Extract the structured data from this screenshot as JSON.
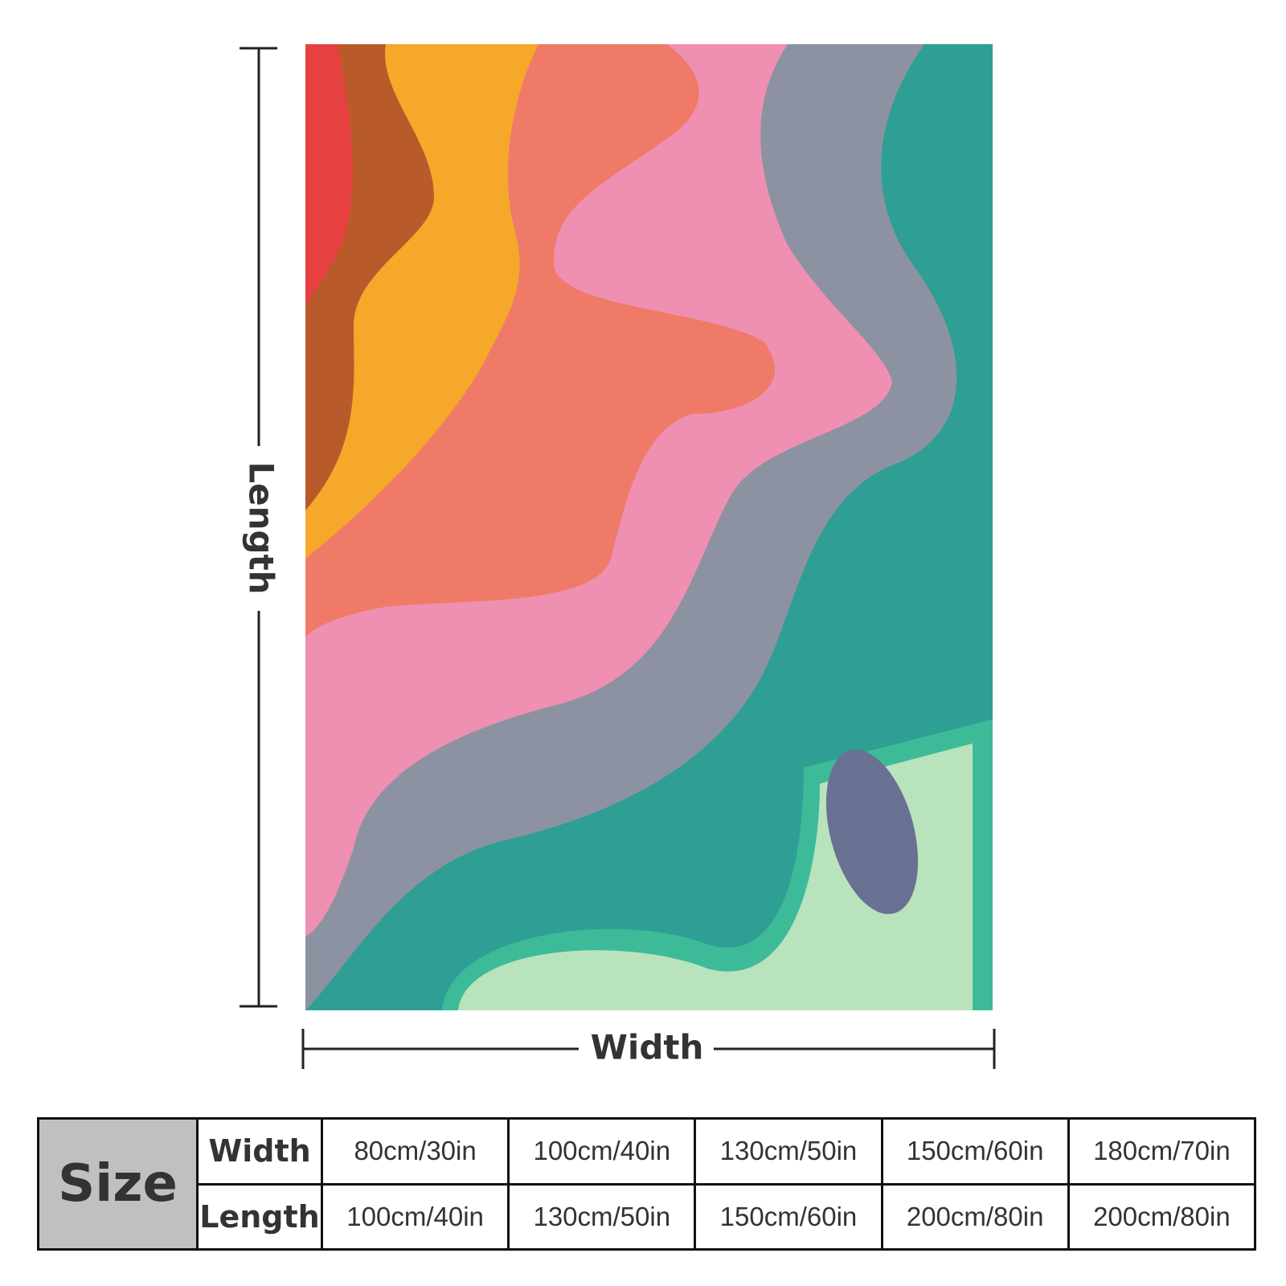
{
  "diagram": {
    "length_label": "Length",
    "width_label": "Width"
  },
  "table": {
    "header": "Size",
    "rows": [
      [
        "Width",
        "80cm/30in",
        "100cm/40in",
        "130cm/50in",
        "150cm/60in",
        "180cm/70in"
      ],
      [
        "Length",
        "100cm/40in",
        "130cm/50in",
        "150cm/60in",
        "200cm/80in",
        "200cm/80in"
      ]
    ]
  }
}
